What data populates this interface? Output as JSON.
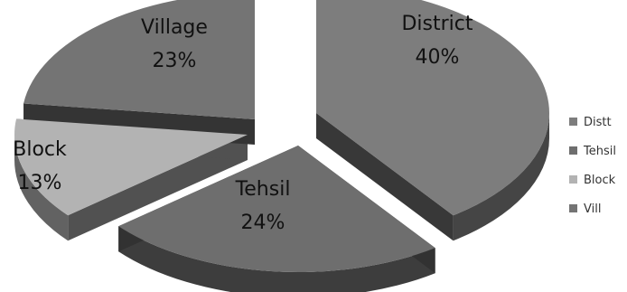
{
  "chart_data": {
    "type": "pie",
    "style": "3d-exploded",
    "categories": [
      "Distt",
      "Tehsil",
      "Block",
      "Vill"
    ],
    "values": [
      40,
      24,
      13,
      23
    ],
    "slice_labels": [
      {
        "name": "District",
        "percent": "40%"
      },
      {
        "name": "Tehsil",
        "percent": "24%"
      },
      {
        "name": "Block",
        "percent": "13%"
      },
      {
        "name": "Village",
        "percent": "23%"
      }
    ],
    "colors": [
      "#7d7d7d",
      "#6e6e6e",
      "#b3b3b3",
      "#747474"
    ],
    "legend": {
      "position": "right",
      "entries": [
        "Distt",
        "Tehsil",
        "Block",
        "Vill"
      ]
    }
  }
}
